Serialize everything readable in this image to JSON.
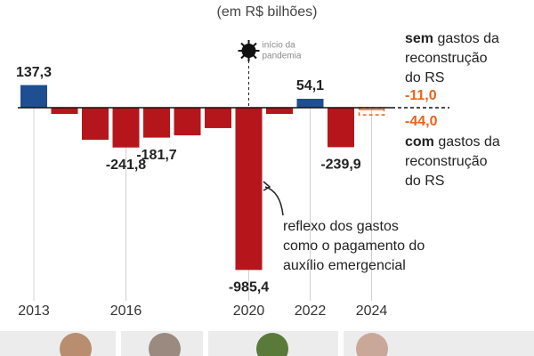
{
  "chart_data": {
    "type": "bar",
    "subtitle": "(em R$ bilhões)",
    "categories": [
      "2013",
      null,
      null,
      "2016",
      null,
      null,
      null,
      "2020",
      null,
      "2022",
      null,
      "2024"
    ],
    "values": [
      137.3,
      -38,
      -195,
      -241.8,
      -181.7,
      -168,
      -124,
      -985.4,
      -38,
      54.1,
      -239.9,
      null
    ],
    "value_labels": [
      "137,3",
      null,
      null,
      "-241,8",
      "-181,7",
      null,
      null,
      "-985,4",
      null,
      "54,1",
      "-239,9",
      null
    ],
    "color_positive": "#1d4f91",
    "color_negative": "#b5161c",
    "ylim": [
      -1000,
      150
    ],
    "projection": {
      "color": "#e8641b",
      "series": [
        {
          "emphasis": "sem",
          "lines": [
            "gastos da",
            "reconstrução",
            "do RS"
          ],
          "value": -11,
          "value_label": "-11,0"
        },
        {
          "emphasis": "com",
          "lines": [
            "gastos da",
            "reconstrução",
            "do RS"
          ],
          "value": -44,
          "value_label": "-44,0"
        }
      ]
    },
    "annotations": {
      "pandemic": [
        "início da",
        "pandemia"
      ],
      "aid": [
        "reflexo dos gastos",
        "como o pagamento do",
        "auxílio emergencial"
      ]
    }
  }
}
